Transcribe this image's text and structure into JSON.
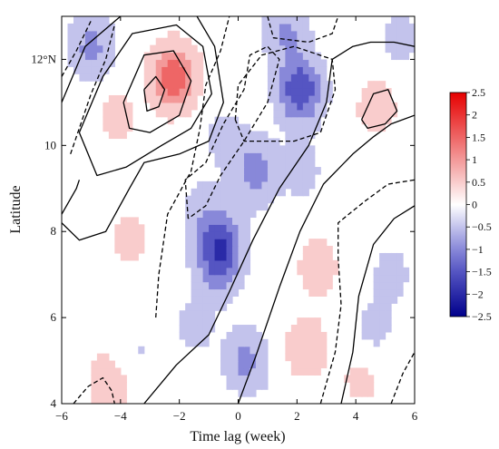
{
  "chart_data": {
    "type": "heatmap",
    "title": "",
    "xlabel": "Time lag (week)",
    "ylabel": "Latitude",
    "xlim": [
      -6,
      6
    ],
    "ylim": [
      4,
      13
    ],
    "x_ticks": [
      "−6",
      "−4",
      "−2",
      "0",
      "2",
      "4",
      "6"
    ],
    "x_tick_values": [
      -6,
      -4,
      -2,
      0,
      2,
      4,
      6
    ],
    "y_ticks": [
      "4",
      "6",
      "8",
      "10",
      "12°N"
    ],
    "y_tick_values": [
      4,
      6,
      8,
      10,
      12
    ],
    "colorbar": {
      "range": [
        -2.5,
        2.5
      ],
      "ticks": [
        "2.5",
        "2",
        "1.5",
        "1",
        "0.5",
        "0",
        "−0.5",
        "−1",
        "−1.5",
        "−2",
        "−2.5"
      ],
      "tick_values": [
        2.5,
        2,
        1.5,
        1,
        0.5,
        0,
        -0.5,
        -1,
        -1.5,
        -2,
        -2.5
      ],
      "colormap": "blue-white-red",
      "colors": {
        "neg_max": "#00008b",
        "neg_mid": "#6a6ad0",
        "zero": "#ffffff",
        "pos_mid": "#f08080",
        "pos_max": "#e60000"
      }
    },
    "shading_features": [
      {
        "x": -5,
        "y": 12.3,
        "value": -0.9
      },
      {
        "x": -2.2,
        "y": 11.6,
        "value": 1.6
      },
      {
        "x": -4.1,
        "y": 10.7,
        "value": 0.4
      },
      {
        "x": 2.1,
        "y": 11.3,
        "value": -1.7
      },
      {
        "x": 1.6,
        "y": 12.7,
        "value": -0.8
      },
      {
        "x": 0.6,
        "y": 9.4,
        "value": -1.0
      },
      {
        "x": -0.5,
        "y": 10.2,
        "value": -0.4
      },
      {
        "x": -1.3,
        "y": 8.5,
        "value": -0.4
      },
      {
        "x": -0.7,
        "y": 7.2,
        "value": -0.9
      },
      {
        "x": -0.6,
        "y": 7.8,
        "value": -1.3
      },
      {
        "x": -1.5,
        "y": 5.8,
        "value": -0.4
      },
      {
        "x": 0.3,
        "y": 5.0,
        "value": -0.9
      },
      {
        "x": -3.7,
        "y": 7.8,
        "value": 0.4
      },
      {
        "x": 2.7,
        "y": 7.2,
        "value": 0.5
      },
      {
        "x": 2.3,
        "y": 5.3,
        "value": 0.6
      },
      {
        "x": 4.7,
        "y": 10.9,
        "value": 0.5
      },
      {
        "x": 5.2,
        "y": 7.0,
        "value": -0.4
      },
      {
        "x": 4.6,
        "y": 5.7,
        "value": -0.4
      },
      {
        "x": -3.5,
        "y": 5.2,
        "value": -0.3
      },
      {
        "x": -4.4,
        "y": 4.5,
        "value": 0.6
      },
      {
        "x": 4.2,
        "y": 4.6,
        "value": 0.4
      },
      {
        "x": 2.2,
        "y": 9.4,
        "value": -0.4
      },
      {
        "x": 5.5,
        "y": 12.5,
        "value": -0.4
      }
    ],
    "contours": {
      "solid": [
        [
          [
            -3.2,
            11.3
          ],
          [
            -2.8,
            11.6
          ],
          [
            -2.5,
            11.3
          ],
          [
            -2.7,
            10.9
          ],
          [
            -3.1,
            10.8
          ],
          [
            -3.2,
            11.3
          ]
        ],
        [
          [
            -3.9,
            11.0
          ],
          [
            -3.2,
            12.1
          ],
          [
            -2.2,
            12.2
          ],
          [
            -1.6,
            11.5
          ],
          [
            -2.0,
            10.7
          ],
          [
            -3.0,
            10.3
          ],
          [
            -3.7,
            10.4
          ],
          [
            -3.9,
            11.0
          ]
        ],
        [
          [
            -5.4,
            10.3
          ],
          [
            -4.6,
            11.6
          ],
          [
            -3.6,
            12.6
          ],
          [
            -2.1,
            12.8
          ],
          [
            -1.2,
            12.3
          ],
          [
            -0.9,
            11.2
          ],
          [
            -1.6,
            10.4
          ],
          [
            -2.6,
            10.0
          ],
          [
            -3.8,
            9.5
          ],
          [
            -4.8,
            9.3
          ],
          [
            -5.4,
            10.3
          ]
        ],
        [
          [
            -6.0,
            8.4
          ],
          [
            -5.5,
            9.0
          ],
          [
            -5.4,
            9.2
          ]
        ],
        [
          [
            -6.0,
            11.0
          ],
          [
            -5.2,
            12.3
          ],
          [
            -4.0,
            13.0
          ]
        ],
        [
          [
            -6.0,
            8.2
          ],
          [
            -5.4,
            7.8
          ],
          [
            -4.5,
            8.0
          ],
          [
            -3.7,
            9.0
          ],
          [
            -3.2,
            9.6
          ],
          [
            -2.0,
            9.8
          ],
          [
            -1.0,
            10.1
          ],
          [
            -0.5,
            11.0
          ],
          [
            -0.8,
            12.3
          ],
          [
            -1.4,
            13.0
          ]
        ],
        [
          [
            -3.2,
            4.0
          ],
          [
            -2.1,
            4.9
          ],
          [
            -1.0,
            5.6
          ],
          [
            -0.3,
            6.6
          ],
          [
            0.5,
            7.8
          ],
          [
            1.4,
            9.0
          ],
          [
            2.4,
            10.0
          ],
          [
            3.0,
            11.0
          ],
          [
            3.2,
            12.0
          ],
          [
            3.9,
            12.3
          ],
          [
            4.5,
            12.4
          ],
          [
            5.3,
            12.4
          ],
          [
            6.0,
            12.3
          ]
        ],
        [
          [
            0.0,
            4.0
          ],
          [
            0.6,
            5.1
          ],
          [
            1.4,
            6.7
          ],
          [
            2.1,
            8.0
          ],
          [
            2.9,
            9.1
          ],
          [
            3.9,
            9.8
          ],
          [
            4.6,
            10.2
          ],
          [
            5.2,
            10.5
          ],
          [
            6.0,
            10.7
          ]
        ],
        [
          [
            3.5,
            4.0
          ],
          [
            3.9,
            5.2
          ],
          [
            4.1,
            6.5
          ],
          [
            4.6,
            7.7
          ],
          [
            5.3,
            8.3
          ],
          [
            6.0,
            8.6
          ]
        ],
        [
          [
            4.2,
            10.6
          ],
          [
            4.6,
            11.2
          ],
          [
            5.1,
            11.3
          ],
          [
            5.4,
            10.8
          ],
          [
            5.0,
            10.5
          ],
          [
            4.4,
            10.4
          ],
          [
            4.2,
            10.6
          ]
        ]
      ],
      "dashed": [
        [
          [
            -6.0,
            11.6
          ],
          [
            -5.5,
            12.2
          ],
          [
            -5.0,
            12.9
          ]
        ],
        [
          [
            -5.7,
            9.8
          ],
          [
            -5.0,
            11.2
          ],
          [
            -4.5,
            12.0
          ],
          [
            -4.2,
            12.8
          ]
        ],
        [
          [
            -2.8,
            6.0
          ],
          [
            -2.7,
            7.0
          ],
          [
            -2.4,
            8.4
          ],
          [
            -1.6,
            9.4
          ],
          [
            -1.3,
            10.4
          ],
          [
            -1.1,
            11.4
          ],
          [
            -0.6,
            12.2
          ],
          [
            -0.3,
            13.0
          ]
        ],
        [
          [
            -1.7,
            8.3
          ],
          [
            -1.8,
            9.2
          ],
          [
            -1.1,
            9.6
          ],
          [
            -0.5,
            10.5
          ],
          [
            0.2,
            11.3
          ],
          [
            0.4,
            12.1
          ],
          [
            1.0,
            12.3
          ],
          [
            1.4,
            12.0
          ],
          [
            1.0,
            11.0
          ],
          [
            0.2,
            10.1
          ],
          [
            -0.6,
            9.3
          ],
          [
            -1.1,
            8.6
          ],
          [
            -1.7,
            8.3
          ]
        ],
        [
          [
            -0.1,
            10.6
          ],
          [
            0.0,
            11.4
          ],
          [
            0.8,
            12.1
          ],
          [
            1.9,
            12.3
          ],
          [
            3.2,
            12.0
          ],
          [
            3.3,
            11.3
          ],
          [
            2.8,
            10.3
          ],
          [
            1.9,
            10.1
          ],
          [
            1.0,
            10.1
          ],
          [
            0.2,
            10.1
          ],
          [
            -0.1,
            10.6
          ]
        ],
        [
          [
            1.0,
            13.0
          ],
          [
            1.2,
            12.5
          ],
          [
            2.4,
            12.4
          ],
          [
            3.2,
            12.6
          ],
          [
            3.4,
            13.0
          ]
        ],
        [
          [
            2.8,
            4.0
          ],
          [
            3.3,
            5.2
          ],
          [
            3.5,
            6.3
          ],
          [
            3.4,
            7.4
          ],
          [
            3.4,
            8.2
          ],
          [
            4.3,
            8.7
          ],
          [
            5.1,
            9.1
          ],
          [
            6.0,
            9.2
          ]
        ],
        [
          [
            5.2,
            4.0
          ],
          [
            5.6,
            4.7
          ],
          [
            6.0,
            5.2
          ]
        ],
        [
          [
            -5.6,
            4.0
          ],
          [
            -5.1,
            4.4
          ],
          [
            -4.6,
            4.6
          ],
          [
            -4.3,
            4.3
          ],
          [
            -4.2,
            4.0
          ]
        ]
      ]
    }
  }
}
